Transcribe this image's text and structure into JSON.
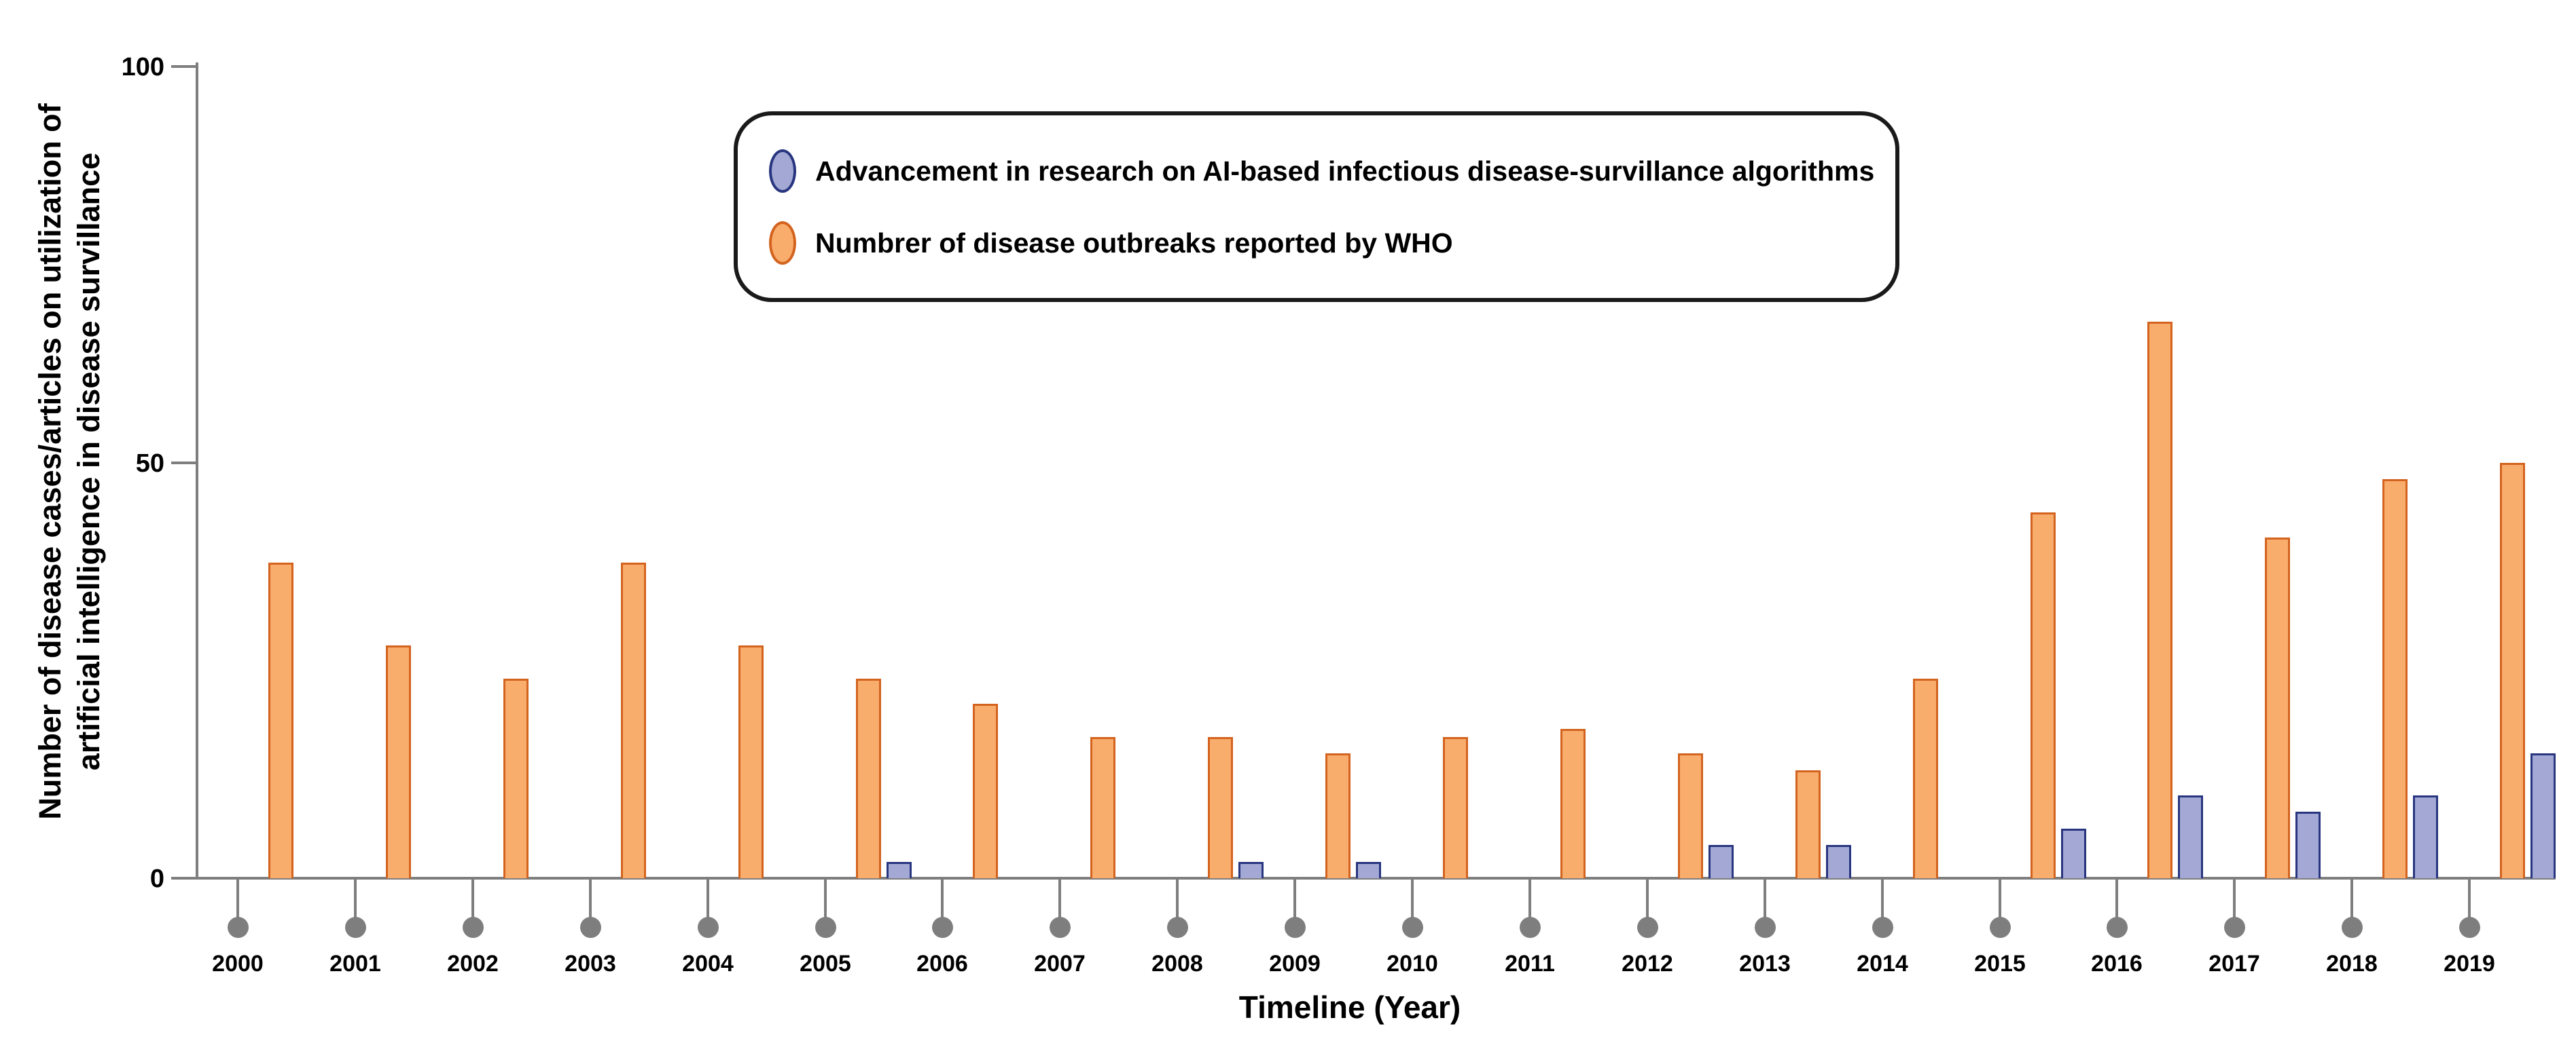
{
  "y_axis": {
    "title_line1": "Number of disease cases/articles on utilization of",
    "title_line2": "artificial intelligence in disease survillance",
    "tick_labels": {
      "top": "100",
      "mid": "50",
      "base": "0"
    }
  },
  "x_axis": {
    "title": "Timeline (Year)"
  },
  "chart_data": {
    "type": "bar",
    "title": "",
    "xlabel": "Timeline (Year)",
    "ylabel": "Number of disease cases/articles on utilization of artificial intelligence in disease survillance",
    "categories": [
      "2000",
      "2001",
      "2002",
      "2003",
      "2004",
      "2005",
      "2006",
      "2007",
      "2008",
      "2009",
      "2010",
      "2011",
      "2012",
      "2013",
      "2014",
      "2015",
      "2016",
      "2017",
      "2018",
      "2019"
    ],
    "series": [
      {
        "name": "Advancement in research on AI-based infectious disease-survillance algorithms",
        "fill": "#A3A9D4",
        "stroke": "#28357F",
        "values": [
          0,
          0,
          0,
          0,
          0,
          2,
          0,
          0,
          2,
          2,
          0,
          0,
          4,
          4,
          0,
          6,
          10,
          8,
          10,
          15
        ]
      },
      {
        "name": "Numbrer of disease outbreaks reported by WHO",
        "fill": "#F9AD6D",
        "stroke": "#D3631E",
        "values": [
          38,
          28,
          24,
          38,
          28,
          24,
          21,
          17,
          17,
          15,
          17,
          18,
          15,
          13,
          24,
          44,
          67,
          41,
          48,
          50
        ]
      }
    ],
    "ylim": [
      0,
      100
    ],
    "yticks": [
      0,
      50,
      100
    ],
    "grid": false,
    "legend_position": "top-center"
  },
  "style": {
    "axis_color": "#7E7E7E",
    "dot_color": "#7E7E7E",
    "text_color": "#000000",
    "legend_border_color": "#1A1A1A",
    "background": "#FFFFFF"
  }
}
